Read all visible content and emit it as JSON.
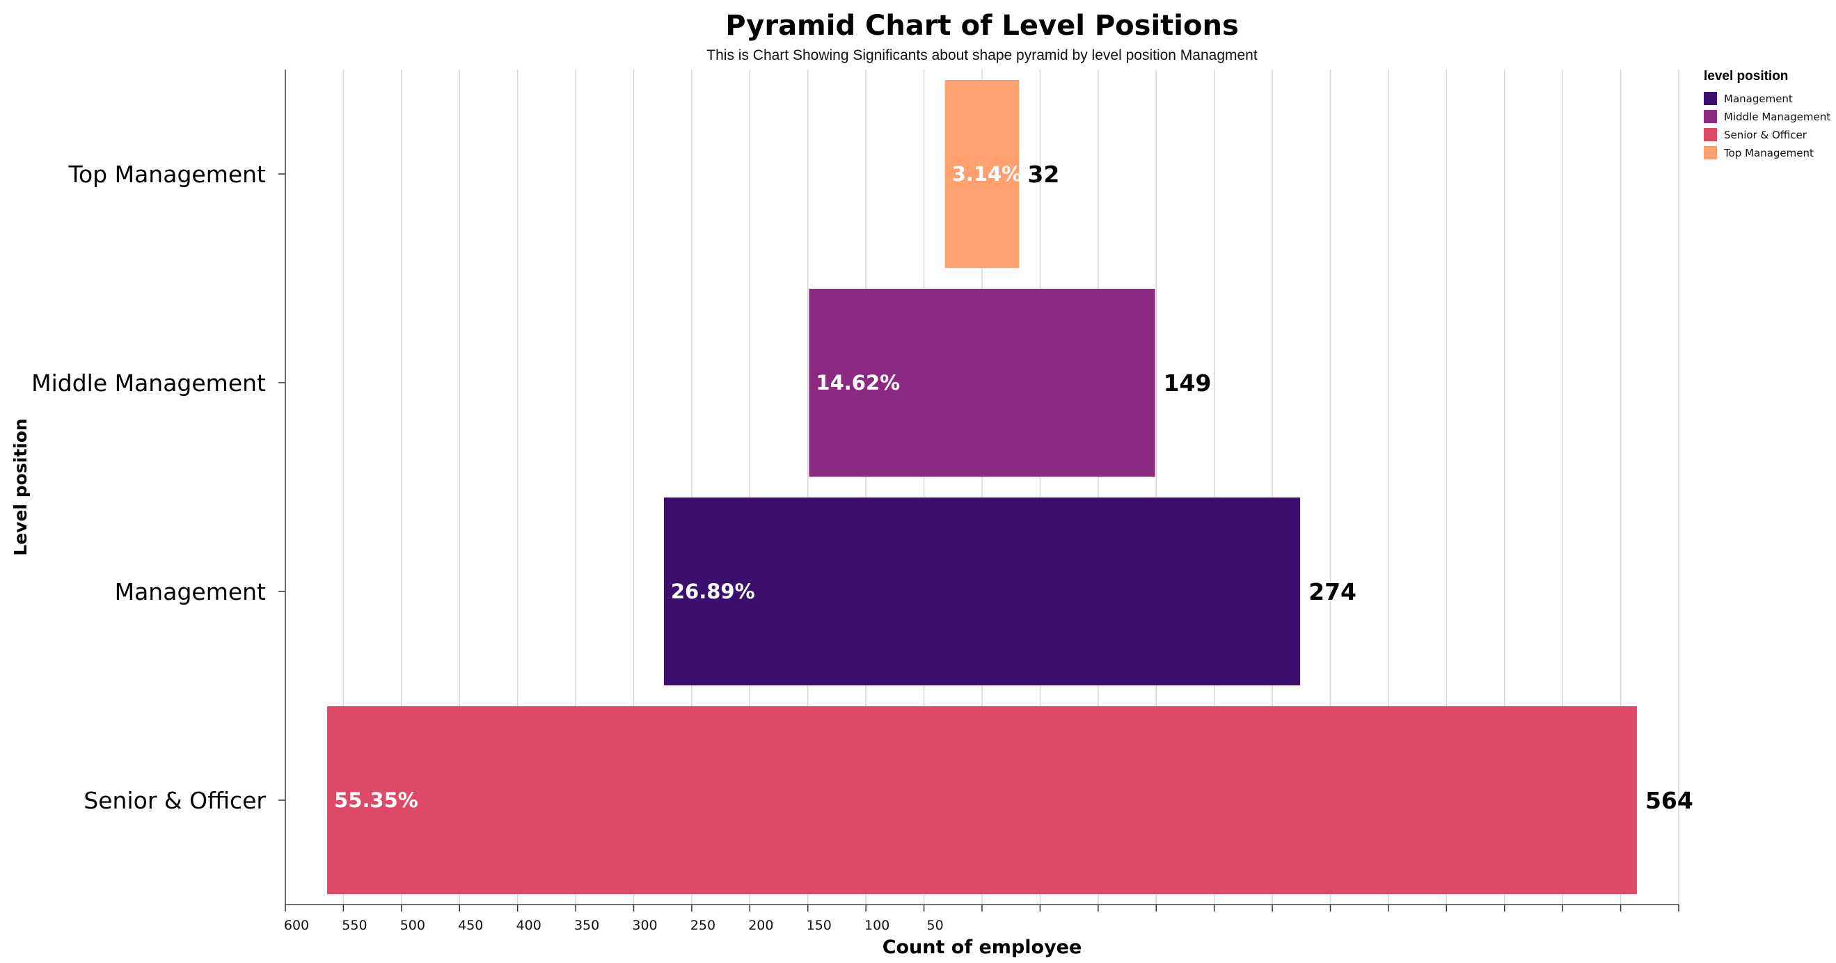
{
  "chart_data": {
    "type": "bar",
    "orientation": "horizontal",
    "title": "Pyramid Chart of Level Positions",
    "subtitle": "This is Chart Showing Significants about shape pyramid by level position Managment",
    "xlabel": "Count of employee",
    "ylabel": "Level position",
    "xlim": [
      -600,
      600
    ],
    "x_tick_labels": [
      "600",
      "550",
      "500",
      "450",
      "400",
      "350",
      "300",
      "250",
      "200",
      "150",
      "100",
      "50"
    ],
    "categories": [
      "Top Management",
      "Middle Management",
      "Management",
      "Senior & Officer"
    ],
    "values": [
      32,
      149,
      274,
      564
    ],
    "percent_labels": [
      "3.14%",
      "14.62%",
      "26.89%",
      "55.35%"
    ],
    "colors": [
      "#FFA06E",
      "#8C2981",
      "#3B0F70",
      "#DE4968"
    ],
    "grid": true,
    "legend": {
      "title": "level position",
      "placement": "top-right",
      "entries": [
        {
          "label": "Management",
          "color": "#3B0F70"
        },
        {
          "label": "Middle Management",
          "color": "#8C2981"
        },
        {
          "label": "Senior & Officer",
          "color": "#DE4968"
        },
        {
          "label": "Top Management",
          "color": "#FFA06E"
        }
      ]
    }
  }
}
